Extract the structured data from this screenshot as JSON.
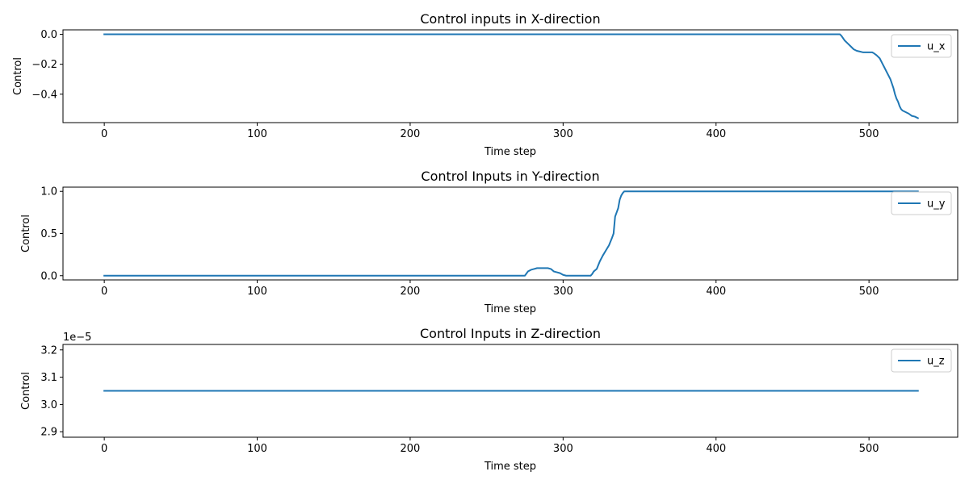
{
  "chart_data": [
    {
      "type": "line",
      "title": "Control inputs in X-direction",
      "xlabel": "Time step",
      "ylabel": "Control",
      "xlim": [
        -27,
        558
      ],
      "ylim": [
        -0.59,
        0.03
      ],
      "xticks": [
        0,
        100,
        200,
        300,
        400,
        500
      ],
      "xtick_labels": [
        "0",
        "100",
        "200",
        "300",
        "400",
        "500"
      ],
      "yticks": [
        0.0,
        -0.2,
        -0.4
      ],
      "ytick_labels": [
        "0.0",
        "−0.2",
        "−0.4"
      ],
      "offset_text": "",
      "grid": false,
      "legend_position": "top-right",
      "line_color": "#1f77b4",
      "series": [
        {
          "name": "u_x",
          "x": [
            0,
            481,
            482,
            484,
            486,
            488,
            490,
            492,
            494,
            496,
            498,
            500,
            502,
            503,
            505,
            507,
            509,
            510,
            512,
            514,
            516,
            517,
            518,
            519,
            520,
            521,
            522,
            524,
            526,
            528,
            530,
            532
          ],
          "y": [
            0.0,
            0.0,
            -0.01,
            -0.04,
            -0.06,
            -0.08,
            -0.1,
            -0.11,
            -0.115,
            -0.12,
            -0.12,
            -0.12,
            -0.12,
            -0.125,
            -0.14,
            -0.16,
            -0.2,
            -0.22,
            -0.26,
            -0.3,
            -0.36,
            -0.4,
            -0.43,
            -0.45,
            -0.48,
            -0.5,
            -0.51,
            -0.52,
            -0.53,
            -0.545,
            -0.55,
            -0.56
          ]
        }
      ]
    },
    {
      "type": "line",
      "title": "Control Inputs in Y-direction",
      "xlabel": "Time step",
      "ylabel": "Control",
      "xlim": [
        -27,
        558
      ],
      "ylim": [
        -0.05,
        1.05
      ],
      "xticks": [
        0,
        100,
        200,
        300,
        400,
        500
      ],
      "xtick_labels": [
        "0",
        "100",
        "200",
        "300",
        "400",
        "500"
      ],
      "yticks": [
        0.0,
        0.5,
        1.0
      ],
      "ytick_labels": [
        "0.0",
        "0.5",
        "1.0"
      ],
      "offset_text": "",
      "grid": false,
      "legend_position": "top-right",
      "line_color": "#1f77b4",
      "series": [
        {
          "name": "u_y",
          "x": [
            0,
            275,
            277,
            279,
            281,
            283,
            285,
            288,
            290,
            292,
            294,
            296,
            298,
            300,
            302,
            305,
            318,
            319,
            320,
            322,
            324,
            326,
            328,
            330,
            332,
            333,
            334,
            336,
            337,
            338,
            339,
            340,
            532
          ],
          "y": [
            0.0,
            0.0,
            0.05,
            0.07,
            0.08,
            0.09,
            0.09,
            0.09,
            0.09,
            0.08,
            0.05,
            0.04,
            0.03,
            0.01,
            0.0,
            0.0,
            0.0,
            0.02,
            0.05,
            0.08,
            0.17,
            0.24,
            0.3,
            0.36,
            0.45,
            0.5,
            0.7,
            0.8,
            0.9,
            0.95,
            0.98,
            1.0,
            1.0
          ]
        }
      ]
    },
    {
      "type": "line",
      "title": "Control Inputs in Z-direction",
      "xlabel": "Time step",
      "ylabel": "Control",
      "xlim": [
        -27,
        558
      ],
      "ylim": [
        2.88,
        3.22
      ],
      "xticks": [
        0,
        100,
        200,
        300,
        400,
        500
      ],
      "xtick_labels": [
        "0",
        "100",
        "200",
        "300",
        "400",
        "500"
      ],
      "yticks": [
        2.9,
        3.0,
        3.1,
        3.2
      ],
      "ytick_labels": [
        "2.9",
        "3.0",
        "3.1",
        "3.2"
      ],
      "offset_text": "1e−5",
      "grid": false,
      "legend_position": "top-right",
      "line_color": "#1f77b4",
      "series": [
        {
          "name": "u_z",
          "x": [
            0,
            532
          ],
          "y": [
            3.05,
            3.05
          ]
        }
      ]
    }
  ]
}
